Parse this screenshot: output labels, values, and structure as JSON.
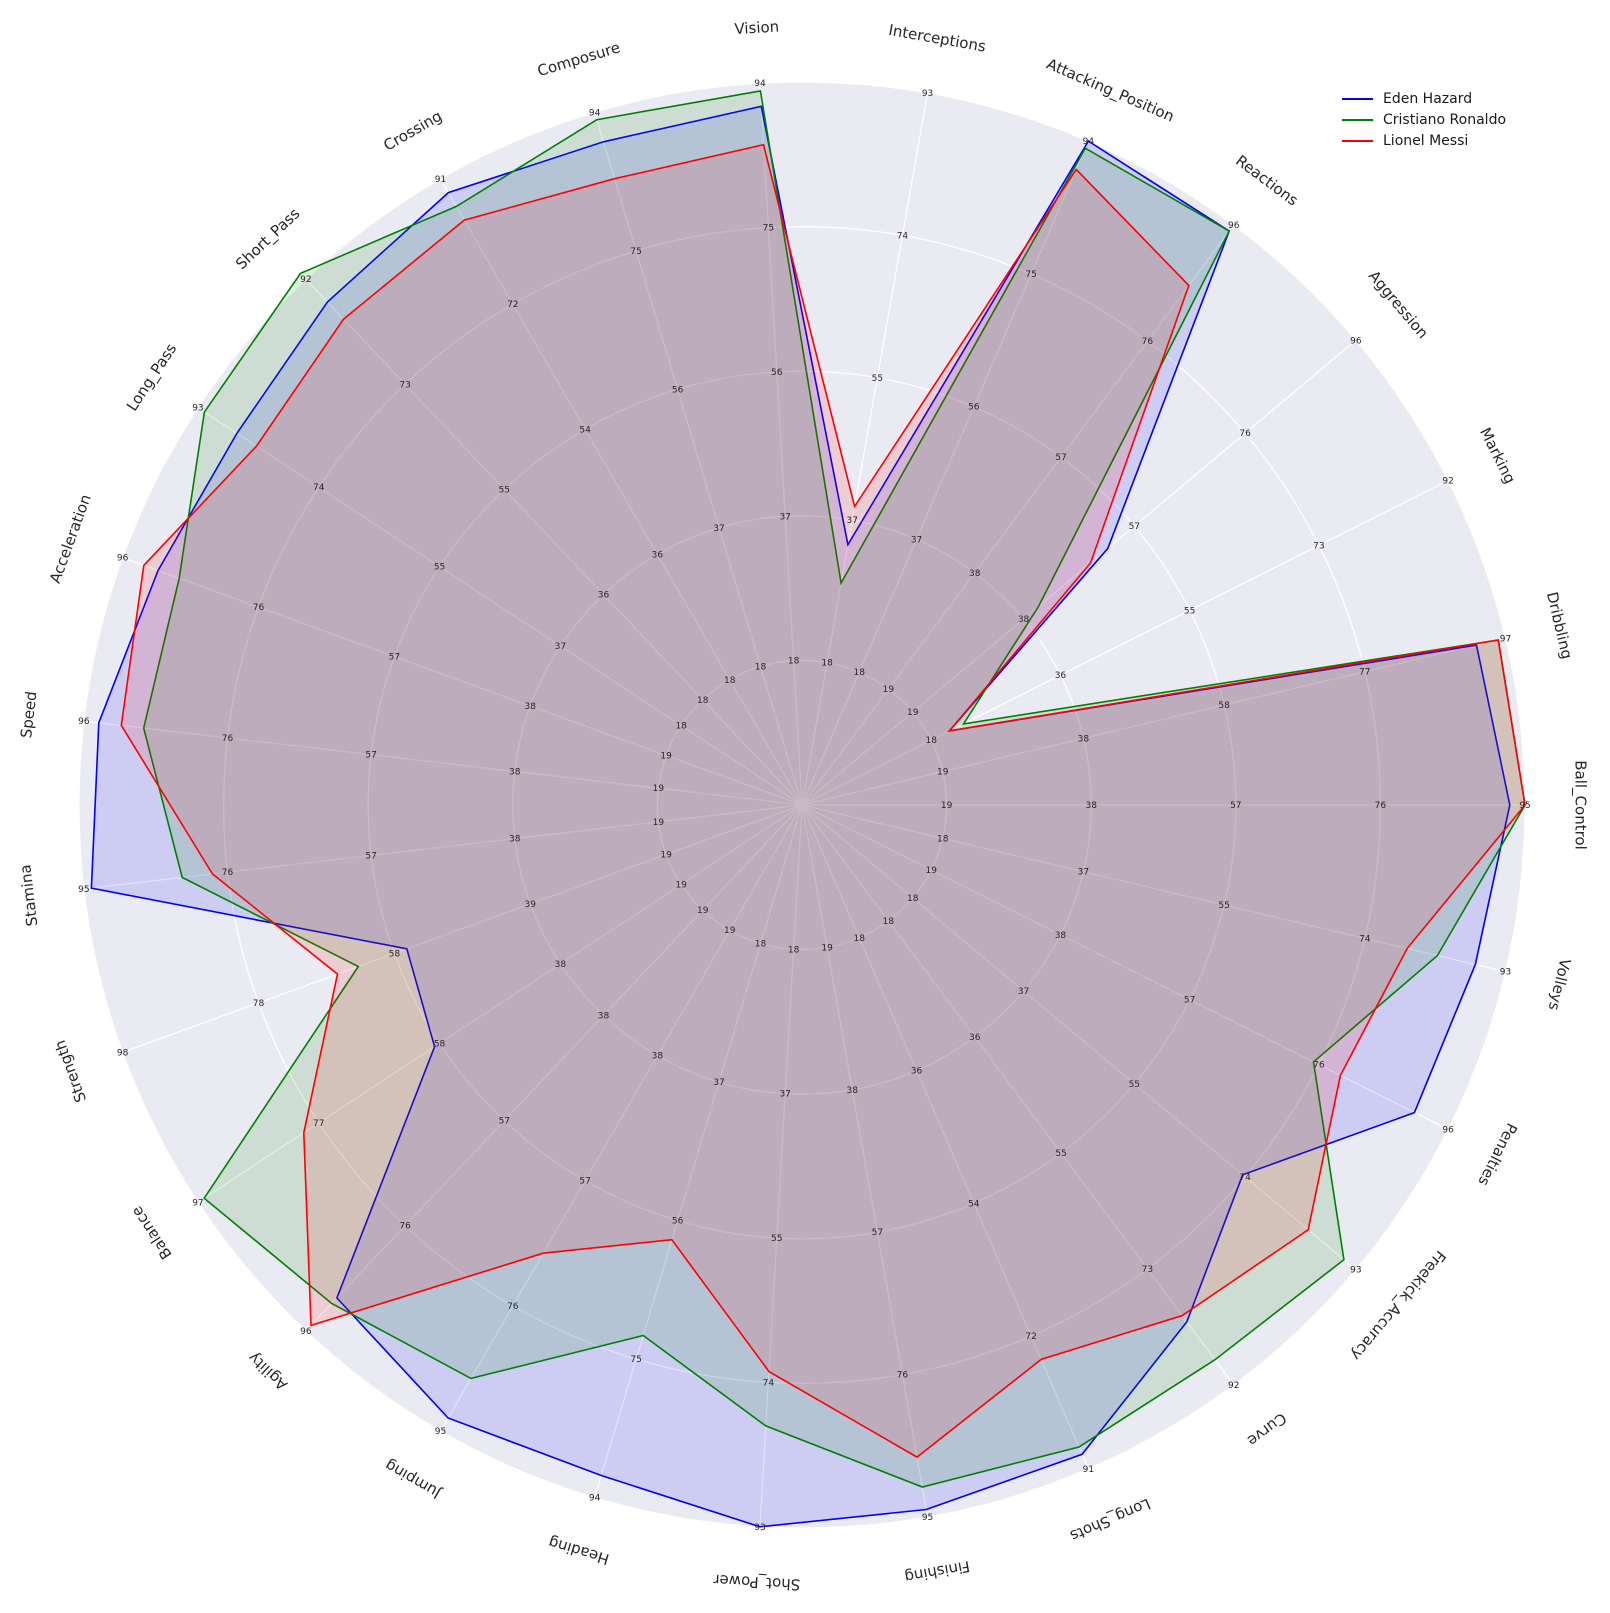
{
  "chart_data": {
    "type": "radar",
    "title": "",
    "categories": [
      "Ball_Control",
      "Dribbling",
      "Marking",
      "Aggression",
      "Reactions",
      "Attacking_Position",
      "Interceptions",
      "Vision",
      "Composure",
      "Crossing",
      "Short_Pass",
      "Long_Pass",
      "Acceleration",
      "Speed",
      "Stamina",
      "Strength",
      "Balance",
      "Agility",
      "Jumping",
      "Heading",
      "Shot_Power",
      "Finishing",
      "Long_Shots",
      "Curve",
      "Freekick_Accuracy",
      "Penalties",
      "Volleys"
    ],
    "axis_max": [
      95,
      97,
      92,
      96,
      96,
      94,
      93,
      94,
      94,
      91,
      92,
      93,
      96,
      96,
      95,
      98,
      97,
      96,
      95,
      94,
      93,
      95,
      91,
      92,
      93,
      96,
      93
    ],
    "tick_labels": [
      [
        "19",
        "38",
        "57",
        "76",
        "95"
      ],
      [
        "19",
        "38",
        "58",
        "77",
        "97"
      ],
      [
        "18",
        "36",
        "55",
        "73",
        "92"
      ],
      [
        "19",
        "38",
        "57",
        "76",
        "96"
      ],
      [
        "19",
        "38",
        "57",
        "76",
        "96"
      ],
      [
        "18",
        "37",
        "56",
        "75",
        "94"
      ],
      [
        "18",
        "37",
        "55",
        "74",
        "93"
      ],
      [
        "18",
        "37",
        "56",
        "75",
        "94"
      ],
      [
        "18",
        "37",
        "56",
        "75",
        "94"
      ],
      [
        "18",
        "36",
        "54",
        "72",
        "91"
      ],
      [
        "18",
        "36",
        "55",
        "73",
        "92"
      ],
      [
        "18",
        "37",
        "55",
        "74",
        "93"
      ],
      [
        "19",
        "38",
        "57",
        "76",
        "96"
      ],
      [
        "19",
        "38",
        "57",
        "76",
        "96"
      ],
      [
        "19",
        "38",
        "57",
        "76",
        "95"
      ],
      [
        "19",
        "39",
        "58",
        "78",
        "98"
      ],
      [
        "19",
        "38",
        "58",
        "77",
        "97"
      ],
      [
        "19",
        "38",
        "57",
        "76",
        "96"
      ],
      [
        "19",
        "38",
        "57",
        "76",
        "95"
      ],
      [
        "18",
        "37",
        "56",
        "75",
        "94"
      ],
      [
        "18",
        "37",
        "55",
        "74",
        "93"
      ],
      [
        "19",
        "38",
        "57",
        "76",
        "95"
      ],
      [
        "18",
        "36",
        "54",
        "72",
        "91"
      ],
      [
        "18",
        "36",
        "55",
        "73",
        "92"
      ],
      [
        "18",
        "37",
        "55",
        "74",
        "93"
      ],
      [
        "19",
        "38",
        "57",
        "76",
        "96"
      ],
      [
        "18",
        "37",
        "55",
        "74",
        "93"
      ]
    ],
    "series": [
      {
        "name": "Eden Hazard",
        "color": "#0000ff",
        "values": [
          93,
          93,
          21,
          53,
          95,
          94,
          34,
          91,
          90,
          89,
          88,
          87,
          91,
          94,
          94,
          57,
          59,
          90,
          93,
          91,
          93,
          94,
          89,
          82,
          74,
          91,
          89
        ]
      },
      {
        "name": "Cristiano Ronaldo",
        "color": "#008000",
        "values": [
          95,
          96,
          23,
          41,
          95,
          93,
          29,
          93,
          93,
          87,
          93,
          92,
          88,
          88,
          82,
          64,
          96,
          91,
          87,
          72,
          80,
          91,
          88,
          88,
          91,
          76,
          84
        ]
      },
      {
        "name": "Lionel Messi",
        "color": "#ff0000",
        "values": [
          95,
          96,
          21,
          50,
          86,
          90,
          39,
          86,
          85,
          85,
          85,
          84,
          93,
          91,
          78,
          67,
          80,
          95,
          68,
          59,
          73,
          87,
          76,
          81,
          85,
          80,
          80
        ]
      }
    ],
    "legend_position": "top-right",
    "grid": true
  }
}
